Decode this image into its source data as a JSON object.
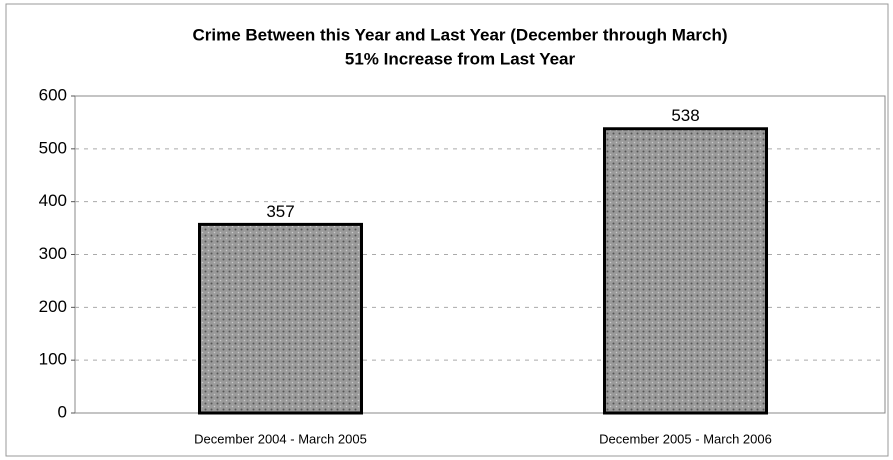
{
  "chart_data": {
    "type": "bar",
    "title": "Crime Between this Year and Last Year (December through March)",
    "subtitle": "51% Increase from Last Year",
    "categories": [
      "December 2004 - March 2005",
      "December 2005 - March 2006"
    ],
    "values": [
      357,
      538
    ],
    "color": "#9a9a9a",
    "ylim": [
      0,
      600
    ],
    "yticks": [
      0,
      100,
      200,
      300,
      400,
      500,
      600
    ],
    "grid": true
  }
}
